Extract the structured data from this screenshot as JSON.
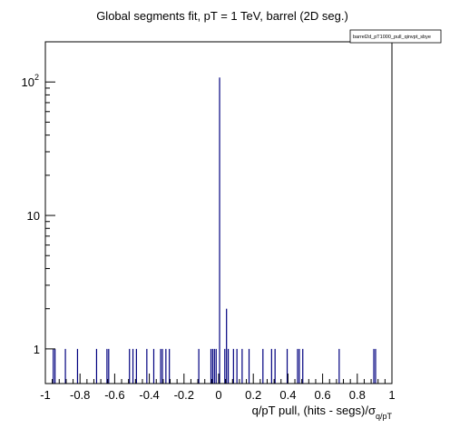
{
  "chart_data": {
    "type": "bar",
    "title": "Global segments fit, pT = 1 TeV, barrel (2D seg.)",
    "legend": "barrel2d_pT1000_pull_qinvpt_sbye",
    "xlabel": "q/pT pull, (hits - segs)/σ",
    "xlabel_sub": "q/pT",
    "x_ticks": [
      "-1",
      "-0.8",
      "-0.6",
      "-0.4",
      "-0.2",
      "0",
      "0.2",
      "0.4",
      "0.6",
      "0.8",
      "1"
    ],
    "y_ticks": [
      {
        "label": "1",
        "value": 1
      },
      {
        "label": "10",
        "value": 10
      },
      {
        "label": "10",
        "sup": "2",
        "value": 100
      }
    ],
    "xlim": [
      -1,
      1
    ],
    "ylim": [
      0.55,
      200
    ],
    "yscale": "log",
    "color": "#00007f",
    "bins": [
      {
        "x": -0.955,
        "y": 1
      },
      {
        "x": -0.945,
        "y": 1
      },
      {
        "x": -0.885,
        "y": 1
      },
      {
        "x": -0.815,
        "y": 1
      },
      {
        "x": -0.705,
        "y": 1
      },
      {
        "x": -0.645,
        "y": 1
      },
      {
        "x": -0.635,
        "y": 1
      },
      {
        "x": -0.515,
        "y": 1
      },
      {
        "x": -0.495,
        "y": 1
      },
      {
        "x": -0.475,
        "y": 1
      },
      {
        "x": -0.415,
        "y": 1
      },
      {
        "x": -0.375,
        "y": 1
      },
      {
        "x": -0.335,
        "y": 1
      },
      {
        "x": -0.325,
        "y": 1
      },
      {
        "x": -0.305,
        "y": 1
      },
      {
        "x": -0.285,
        "y": 1
      },
      {
        "x": -0.115,
        "y": 1
      },
      {
        "x": -0.045,
        "y": 1
      },
      {
        "x": -0.035,
        "y": 1
      },
      {
        "x": -0.025,
        "y": 1
      },
      {
        "x": -0.015,
        "y": 1
      },
      {
        "x": 0.005,
        "y": 108
      },
      {
        "x": 0.035,
        "y": 1
      },
      {
        "x": 0.045,
        "y": 2
      },
      {
        "x": 0.055,
        "y": 1
      },
      {
        "x": 0.085,
        "y": 1
      },
      {
        "x": 0.105,
        "y": 1
      },
      {
        "x": 0.135,
        "y": 1
      },
      {
        "x": 0.175,
        "y": 1
      },
      {
        "x": 0.255,
        "y": 1
      },
      {
        "x": 0.305,
        "y": 1
      },
      {
        "x": 0.325,
        "y": 1
      },
      {
        "x": 0.395,
        "y": 1
      },
      {
        "x": 0.455,
        "y": 1
      },
      {
        "x": 0.465,
        "y": 1
      },
      {
        "x": 0.485,
        "y": 1
      },
      {
        "x": 0.695,
        "y": 1
      },
      {
        "x": 0.895,
        "y": 1
      },
      {
        "x": 0.905,
        "y": 1
      }
    ]
  }
}
